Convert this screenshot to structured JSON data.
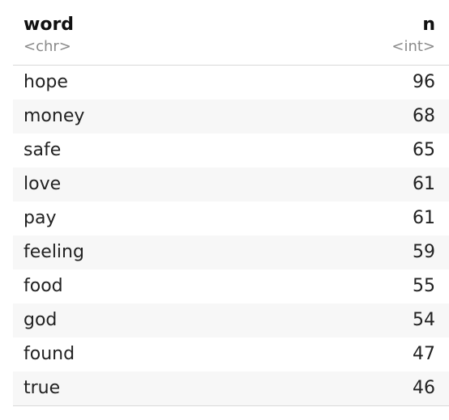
{
  "table": {
    "columns": [
      {
        "name": "word",
        "type": "<chr>"
      },
      {
        "name": "n",
        "type": "<int>"
      }
    ],
    "rows": [
      {
        "word": "hope",
        "n": "96"
      },
      {
        "word": "money",
        "n": "68"
      },
      {
        "word": "safe",
        "n": "65"
      },
      {
        "word": "love",
        "n": "61"
      },
      {
        "word": "pay",
        "n": "61"
      },
      {
        "word": "feeling",
        "n": "59"
      },
      {
        "word": "food",
        "n": "55"
      },
      {
        "word": "god",
        "n": "54"
      },
      {
        "word": "found",
        "n": "47"
      },
      {
        "word": "true",
        "n": "46"
      }
    ]
  }
}
